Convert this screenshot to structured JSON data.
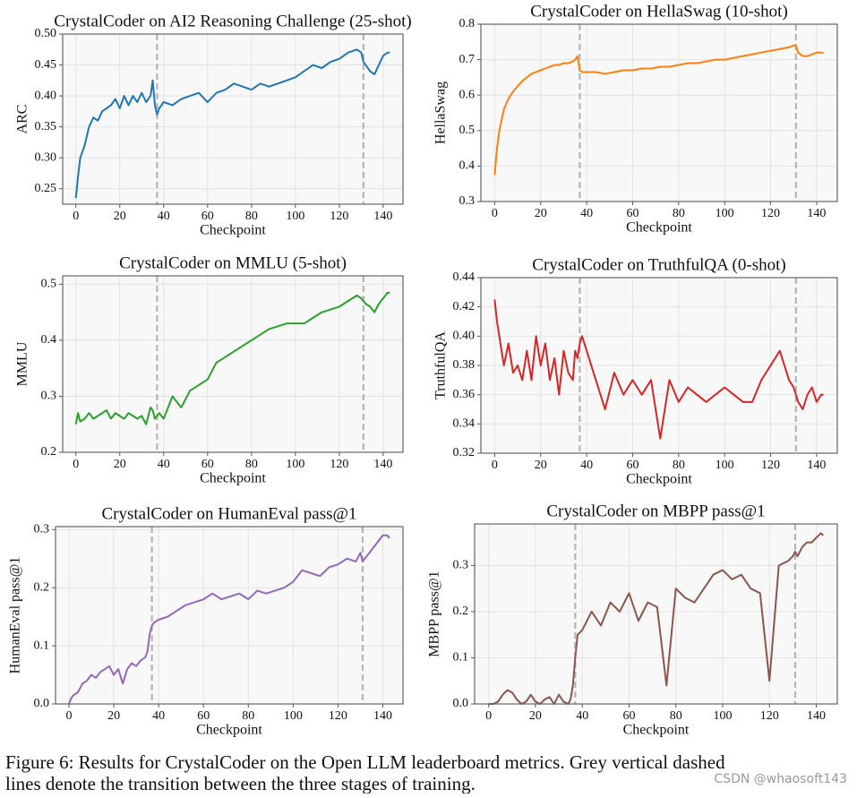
{
  "chart_data": [
    {
      "type": "line",
      "title": "CrystalCoder on AI2 Reasoning Challenge (25-shot)",
      "xlabel": "Checkpoint",
      "ylabel": "ARC",
      "color": "#1f77b4",
      "x": [
        0,
        1,
        2,
        4,
        6,
        8,
        10,
        12,
        14,
        16,
        18,
        20,
        22,
        24,
        26,
        28,
        30,
        32,
        34,
        35,
        36,
        37,
        38,
        40,
        44,
        48,
        52,
        56,
        60,
        64,
        68,
        72,
        76,
        80,
        84,
        88,
        92,
        96,
        100,
        104,
        108,
        112,
        116,
        120,
        124,
        128,
        130,
        131,
        132,
        134,
        136,
        138,
        140,
        142,
        143
      ],
      "values": [
        0.235,
        0.27,
        0.3,
        0.32,
        0.35,
        0.365,
        0.36,
        0.375,
        0.38,
        0.385,
        0.395,
        0.38,
        0.4,
        0.385,
        0.4,
        0.39,
        0.405,
        0.39,
        0.4,
        0.425,
        0.385,
        0.37,
        0.38,
        0.39,
        0.385,
        0.395,
        0.4,
        0.405,
        0.39,
        0.405,
        0.41,
        0.42,
        0.415,
        0.41,
        0.42,
        0.415,
        0.42,
        0.425,
        0.43,
        0.44,
        0.45,
        0.445,
        0.455,
        0.46,
        0.47,
        0.475,
        0.47,
        0.455,
        0.45,
        0.44,
        0.435,
        0.45,
        0.465,
        0.47,
        0.47
      ],
      "xlim": [
        -6,
        149
      ],
      "xticks": [
        0,
        20,
        40,
        60,
        80,
        100,
        120,
        140
      ],
      "ylim": [
        0.225,
        0.5
      ],
      "yticks": [
        0.25,
        {
          "value": 0.3,
          "label": "0.30"
        },
        0.35,
        {
          "value": 0.4,
          "label": "0.40"
        },
        0.45,
        {
          "value": 0.5,
          "label": "0.50"
        }
      ],
      "vlines": [
        37,
        131
      ],
      "vline_color": "#b5b5b5",
      "grid": true
    },
    {
      "type": "line",
      "title": "CrystalCoder on HellaSwag (10-shot)",
      "xlabel": "Checkpoint",
      "ylabel": "HellaSwag",
      "color": "#ff7f0e",
      "x": [
        0,
        1,
        2,
        4,
        6,
        8,
        10,
        12,
        14,
        16,
        18,
        20,
        22,
        24,
        26,
        28,
        30,
        32,
        34,
        35,
        36,
        37,
        38,
        40,
        44,
        48,
        52,
        56,
        60,
        64,
        68,
        72,
        76,
        80,
        84,
        88,
        92,
        96,
        100,
        104,
        108,
        112,
        116,
        120,
        124,
        128,
        130,
        131,
        132,
        134,
        136,
        138,
        140,
        142,
        143
      ],
      "values": [
        0.375,
        0.45,
        0.5,
        0.56,
        0.59,
        0.61,
        0.625,
        0.64,
        0.65,
        0.66,
        0.665,
        0.67,
        0.675,
        0.68,
        0.685,
        0.685,
        0.69,
        0.69,
        0.695,
        0.7,
        0.71,
        0.67,
        0.665,
        0.665,
        0.665,
        0.66,
        0.665,
        0.67,
        0.67,
        0.675,
        0.675,
        0.68,
        0.68,
        0.685,
        0.69,
        0.69,
        0.695,
        0.7,
        0.7,
        0.705,
        0.71,
        0.715,
        0.72,
        0.725,
        0.73,
        0.735,
        0.74,
        0.74,
        0.72,
        0.71,
        0.71,
        0.715,
        0.72,
        0.72,
        0.718
      ],
      "xlim": [
        -6,
        149
      ],
      "xticks": [
        0,
        20,
        40,
        60,
        80,
        100,
        120,
        140
      ],
      "ylim": [
        0.3,
        0.8
      ],
      "yticks": [
        0.3,
        0.4,
        0.5,
        0.6,
        0.7,
        0.8
      ],
      "vlines": [
        37,
        131
      ],
      "vline_color": "#b5b5b5",
      "grid": true
    },
    {
      "type": "line",
      "title": "CrystalCoder on MMLU (5-shot)",
      "xlabel": "Checkpoint",
      "ylabel": "MMLU",
      "color": "#2ca02c",
      "x": [
        0,
        1,
        2,
        4,
        6,
        8,
        10,
        12,
        14,
        16,
        18,
        20,
        22,
        24,
        26,
        28,
        30,
        32,
        34,
        35,
        36,
        37,
        38,
        40,
        44,
        48,
        52,
        56,
        60,
        64,
        68,
        72,
        76,
        80,
        84,
        88,
        92,
        96,
        100,
        104,
        108,
        112,
        116,
        120,
        124,
        128,
        130,
        131,
        132,
        134,
        136,
        138,
        140,
        142,
        143
      ],
      "values": [
        0.25,
        0.27,
        0.255,
        0.26,
        0.27,
        0.26,
        0.265,
        0.27,
        0.275,
        0.26,
        0.27,
        0.265,
        0.26,
        0.27,
        0.265,
        0.26,
        0.265,
        0.25,
        0.28,
        0.275,
        0.26,
        0.265,
        0.27,
        0.26,
        0.3,
        0.28,
        0.31,
        0.32,
        0.33,
        0.36,
        0.37,
        0.38,
        0.39,
        0.4,
        0.41,
        0.42,
        0.425,
        0.43,
        0.43,
        0.43,
        0.44,
        0.45,
        0.455,
        0.46,
        0.47,
        0.48,
        0.475,
        0.47,
        0.465,
        0.46,
        0.45,
        0.465,
        0.475,
        0.485,
        0.485
      ],
      "xlim": [
        -6,
        149
      ],
      "xticks": [
        0,
        20,
        40,
        60,
        80,
        100,
        120,
        140
      ],
      "ylim": [
        0.2,
        0.515
      ],
      "yticks": [
        0.2,
        0.3,
        0.4,
        0.5
      ],
      "vlines": [
        37,
        131
      ],
      "vline_color": "#b5b5b5",
      "grid": true
    },
    {
      "type": "line",
      "title": "CrystalCoder on TruthfulQA (0-shot)",
      "xlabel": "Checkpoint",
      "ylabel": "TruthfulQA",
      "color": "#d62728",
      "x": [
        0,
        1,
        2,
        4,
        6,
        8,
        10,
        12,
        14,
        16,
        18,
        20,
        22,
        24,
        26,
        28,
        30,
        32,
        34,
        35,
        36,
        37,
        38,
        40,
        44,
        48,
        52,
        56,
        60,
        64,
        68,
        72,
        76,
        80,
        84,
        88,
        92,
        96,
        100,
        104,
        108,
        112,
        116,
        120,
        124,
        128,
        130,
        131,
        132,
        134,
        136,
        138,
        140,
        142,
        143
      ],
      "values": [
        0.425,
        0.41,
        0.4,
        0.38,
        0.395,
        0.375,
        0.38,
        0.37,
        0.39,
        0.37,
        0.4,
        0.38,
        0.395,
        0.37,
        0.385,
        0.36,
        0.39,
        0.375,
        0.37,
        0.39,
        0.385,
        0.395,
        0.4,
        0.39,
        0.37,
        0.35,
        0.375,
        0.36,
        0.37,
        0.36,
        0.37,
        0.33,
        0.37,
        0.355,
        0.365,
        0.36,
        0.355,
        0.36,
        0.365,
        0.36,
        0.355,
        0.355,
        0.37,
        0.38,
        0.39,
        0.37,
        0.365,
        0.36,
        0.355,
        0.35,
        0.36,
        0.365,
        0.355,
        0.36,
        0.36
      ],
      "xlim": [
        -6,
        149
      ],
      "xticks": [
        0,
        20,
        40,
        60,
        80,
        100,
        120,
        140
      ],
      "ylim": [
        0.32,
        0.44
      ],
      "yticks": [
        0.32,
        0.34,
        0.36,
        0.38,
        {
          "value": 0.4,
          "label": "0.40"
        },
        0.42,
        0.44
      ],
      "vlines": [
        37,
        131
      ],
      "vline_color": "#b5b5b5",
      "grid": true
    },
    {
      "type": "line",
      "title": "CrystalCoder on HumanEval pass@1",
      "xlabel": "Checkpoint",
      "ylabel": "HumanEval pass@1",
      "color": "#9467bd",
      "x": [
        0,
        1,
        2,
        4,
        6,
        8,
        10,
        12,
        14,
        16,
        18,
        20,
        22,
        24,
        26,
        28,
        30,
        32,
        34,
        35,
        36,
        37,
        38,
        40,
        44,
        48,
        52,
        56,
        60,
        64,
        68,
        72,
        76,
        80,
        84,
        88,
        92,
        96,
        100,
        104,
        108,
        112,
        116,
        120,
        124,
        128,
        130,
        131,
        132,
        134,
        136,
        138,
        140,
        142,
        143
      ],
      "values": [
        0.0,
        0.01,
        0.015,
        0.02,
        0.035,
        0.04,
        0.05,
        0.045,
        0.055,
        0.06,
        0.065,
        0.05,
        0.06,
        0.035,
        0.06,
        0.07,
        0.065,
        0.075,
        0.08,
        0.09,
        0.12,
        0.135,
        0.14,
        0.145,
        0.15,
        0.16,
        0.17,
        0.175,
        0.18,
        0.19,
        0.18,
        0.185,
        0.19,
        0.18,
        0.195,
        0.19,
        0.195,
        0.2,
        0.21,
        0.23,
        0.225,
        0.22,
        0.235,
        0.24,
        0.25,
        0.245,
        0.26,
        0.245,
        0.25,
        0.26,
        0.27,
        0.28,
        0.29,
        0.29,
        0.285
      ],
      "xlim": [
        -6,
        149
      ],
      "xticks": [
        0,
        20,
        40,
        60,
        80,
        100,
        120,
        140
      ],
      "ylim": [
        0,
        0.305
      ],
      "yticks": [
        {
          "value": 0,
          "label": "0.0"
        },
        0.1,
        0.2,
        0.3
      ],
      "vlines": [
        37,
        131
      ],
      "vline_color": "#b5b5b5",
      "grid": true
    },
    {
      "type": "line",
      "title": "CrystalCoder on MBPP pass@1",
      "xlabel": "Checkpoint",
      "ylabel": "MBPP pass@1",
      "color": "#8c564b",
      "x": [
        0,
        1,
        2,
        4,
        6,
        8,
        10,
        12,
        14,
        16,
        18,
        20,
        22,
        24,
        26,
        28,
        30,
        32,
        34,
        35,
        36,
        37,
        38,
        40,
        44,
        48,
        52,
        56,
        60,
        64,
        68,
        72,
        76,
        80,
        84,
        88,
        92,
        96,
        100,
        104,
        108,
        112,
        116,
        120,
        124,
        128,
        130,
        131,
        132,
        134,
        136,
        138,
        140,
        142,
        143
      ],
      "values": [
        0.0,
        0.0,
        0.0,
        0.005,
        0.02,
        0.03,
        0.025,
        0.01,
        0.0,
        0.005,
        0.02,
        0.005,
        0.0,
        0.01,
        0.015,
        0.0,
        0.02,
        0.005,
        0.0,
        0.01,
        0.04,
        0.1,
        0.15,
        0.16,
        0.2,
        0.17,
        0.22,
        0.2,
        0.24,
        0.18,
        0.22,
        0.21,
        0.04,
        0.25,
        0.23,
        0.22,
        0.25,
        0.28,
        0.29,
        0.27,
        0.28,
        0.25,
        0.24,
        0.05,
        0.3,
        0.31,
        0.32,
        0.33,
        0.32,
        0.34,
        0.35,
        0.35,
        0.36,
        0.37,
        0.365
      ],
      "xlim": [
        -6,
        149
      ],
      "xticks": [
        0,
        20,
        40,
        60,
        80,
        100,
        120,
        140
      ],
      "ylim": [
        0,
        0.39
      ],
      "yticks": [
        {
          "value": 0,
          "label": "0.0"
        },
        0.1,
        0.2,
        0.3
      ],
      "vlines": [
        37,
        131
      ],
      "vline_color": "#b5b5b5",
      "grid": true
    }
  ],
  "caption": [
    "Figure 6: Results for CrystalCoder on the Open LLM leaderboard metrics. Grey vertical dashed",
    "lines denote the transition between the three stages of training."
  ],
  "watermark": "CSDN @whaosoft143"
}
